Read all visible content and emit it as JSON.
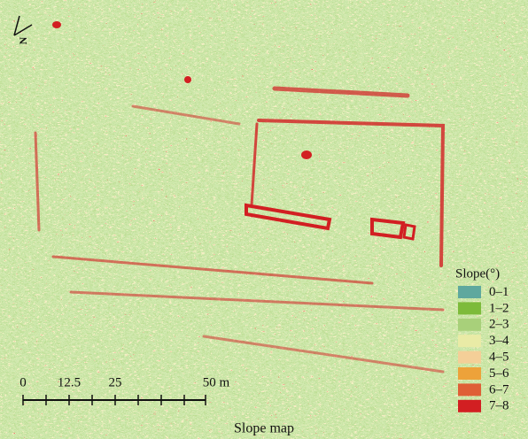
{
  "map": {
    "north_label": "N",
    "scale_bar_labels": [
      "0",
      "12.5",
      "25",
      "50 m"
    ],
    "legend": {
      "title": "Slope(°)",
      "items": [
        {
          "label": "0–1",
          "color": "#5fa89e"
        },
        {
          "label": "1–2",
          "color": "#7dbb3a"
        },
        {
          "label": "2–3",
          "color": "#a8d07a"
        },
        {
          "label": "3–4",
          "color": "#e9eba6"
        },
        {
          "label": "4–5",
          "color": "#f4cf98"
        },
        {
          "label": "5–6",
          "color": "#eda23a"
        },
        {
          "label": "6–7",
          "color": "#df5f36"
        },
        {
          "label": "7–8",
          "color": "#d21f22"
        }
      ]
    }
  },
  "caption": "Slope map"
}
